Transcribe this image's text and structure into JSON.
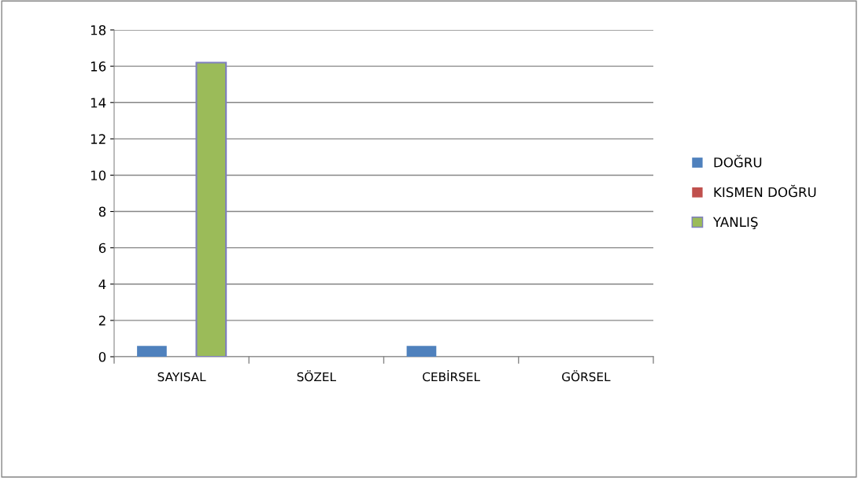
{
  "chart_data": {
    "type": "bar",
    "categories": [
      "SAYISAL",
      "SÖZEL",
      "CEBİRSEL",
      "GÖRSEL"
    ],
    "series": [
      {
        "name": "DOĞRU",
        "color": "#4f81bd",
        "values": [
          0.6,
          0,
          0.6,
          0
        ]
      },
      {
        "name": "KISMEN DOĞRU",
        "color": "#c0504d",
        "values": [
          0,
          0,
          0,
          0
        ]
      },
      {
        "name": "YANLIŞ",
        "color": "#9bbb59",
        "values": [
          16.2,
          0,
          0,
          0
        ]
      }
    ],
    "ylim": [
      0,
      18
    ],
    "yticks": [
      0,
      2,
      4,
      6,
      8,
      10,
      12,
      14,
      16,
      18
    ],
    "grid": "y",
    "legend": "right"
  }
}
